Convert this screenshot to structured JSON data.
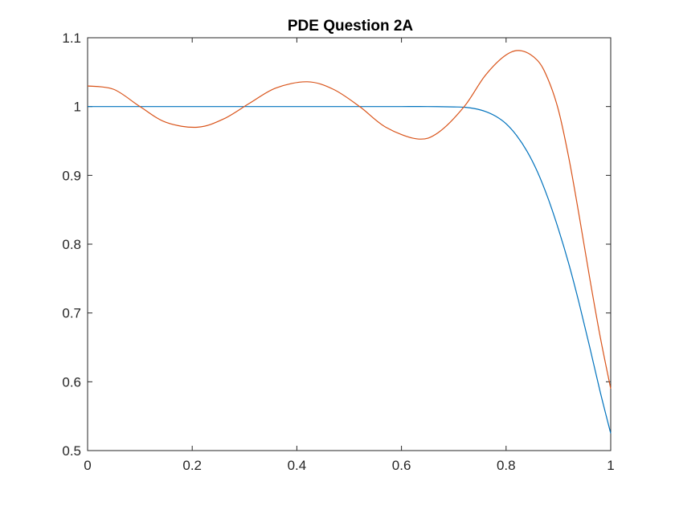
{
  "chart_data": {
    "type": "line",
    "title": "PDE Question 2A",
    "xlabel": "",
    "ylabel": "",
    "xlim": [
      0,
      1
    ],
    "ylim": [
      0.5,
      1.1
    ],
    "xticks": [
      "0",
      "0.2",
      "0.4",
      "0.6",
      "0.8",
      "1"
    ],
    "xtick_values": [
      0,
      0.2,
      0.4,
      0.6,
      0.8,
      1
    ],
    "yticks": [
      "0.5",
      "0.6",
      "0.7",
      "0.8",
      "0.9",
      "1",
      "1.1"
    ],
    "ytick_values": [
      0.5,
      0.6,
      0.7,
      0.8,
      0.9,
      1.0,
      1.1
    ],
    "grid": false,
    "box": true,
    "series": [
      {
        "color": "#0072BD",
        "x": [
          0,
          0.1,
          0.2,
          0.3,
          0.4,
          0.5,
          0.6,
          0.65,
          0.7,
          0.72,
          0.74,
          0.76,
          0.78,
          0.8,
          0.82,
          0.84,
          0.86,
          0.88,
          0.9,
          0.92,
          0.94,
          0.96,
          0.98,
          1.0
        ],
        "y": [
          1.0,
          1.0,
          1.0,
          1.0,
          1.0,
          1.0,
          1.0,
          1.0,
          0.9995,
          0.999,
          0.997,
          0.993,
          0.986,
          0.975,
          0.958,
          0.935,
          0.905,
          0.867,
          0.822,
          0.771,
          0.713,
          0.65,
          0.585,
          0.525
        ]
      },
      {
        "color": "#D95319",
        "x": [
          0,
          0.05,
          0.1,
          0.15,
          0.21,
          0.26,
          0.31,
          0.36,
          0.42,
          0.47,
          0.52,
          0.57,
          0.63,
          0.67,
          0.72,
          0.76,
          0.8,
          0.83,
          0.86,
          0.88,
          0.9,
          0.92,
          0.94,
          0.96,
          0.98,
          1.0
        ],
        "y": [
          1.03,
          1.025,
          1.0,
          0.977,
          0.97,
          0.982,
          1.005,
          1.027,
          1.036,
          1.025,
          1.0,
          0.97,
          0.953,
          0.962,
          1.0,
          1.045,
          1.075,
          1.081,
          1.067,
          1.04,
          0.995,
          0.925,
          0.84,
          0.75,
          0.665,
          0.59
        ]
      }
    ]
  }
}
